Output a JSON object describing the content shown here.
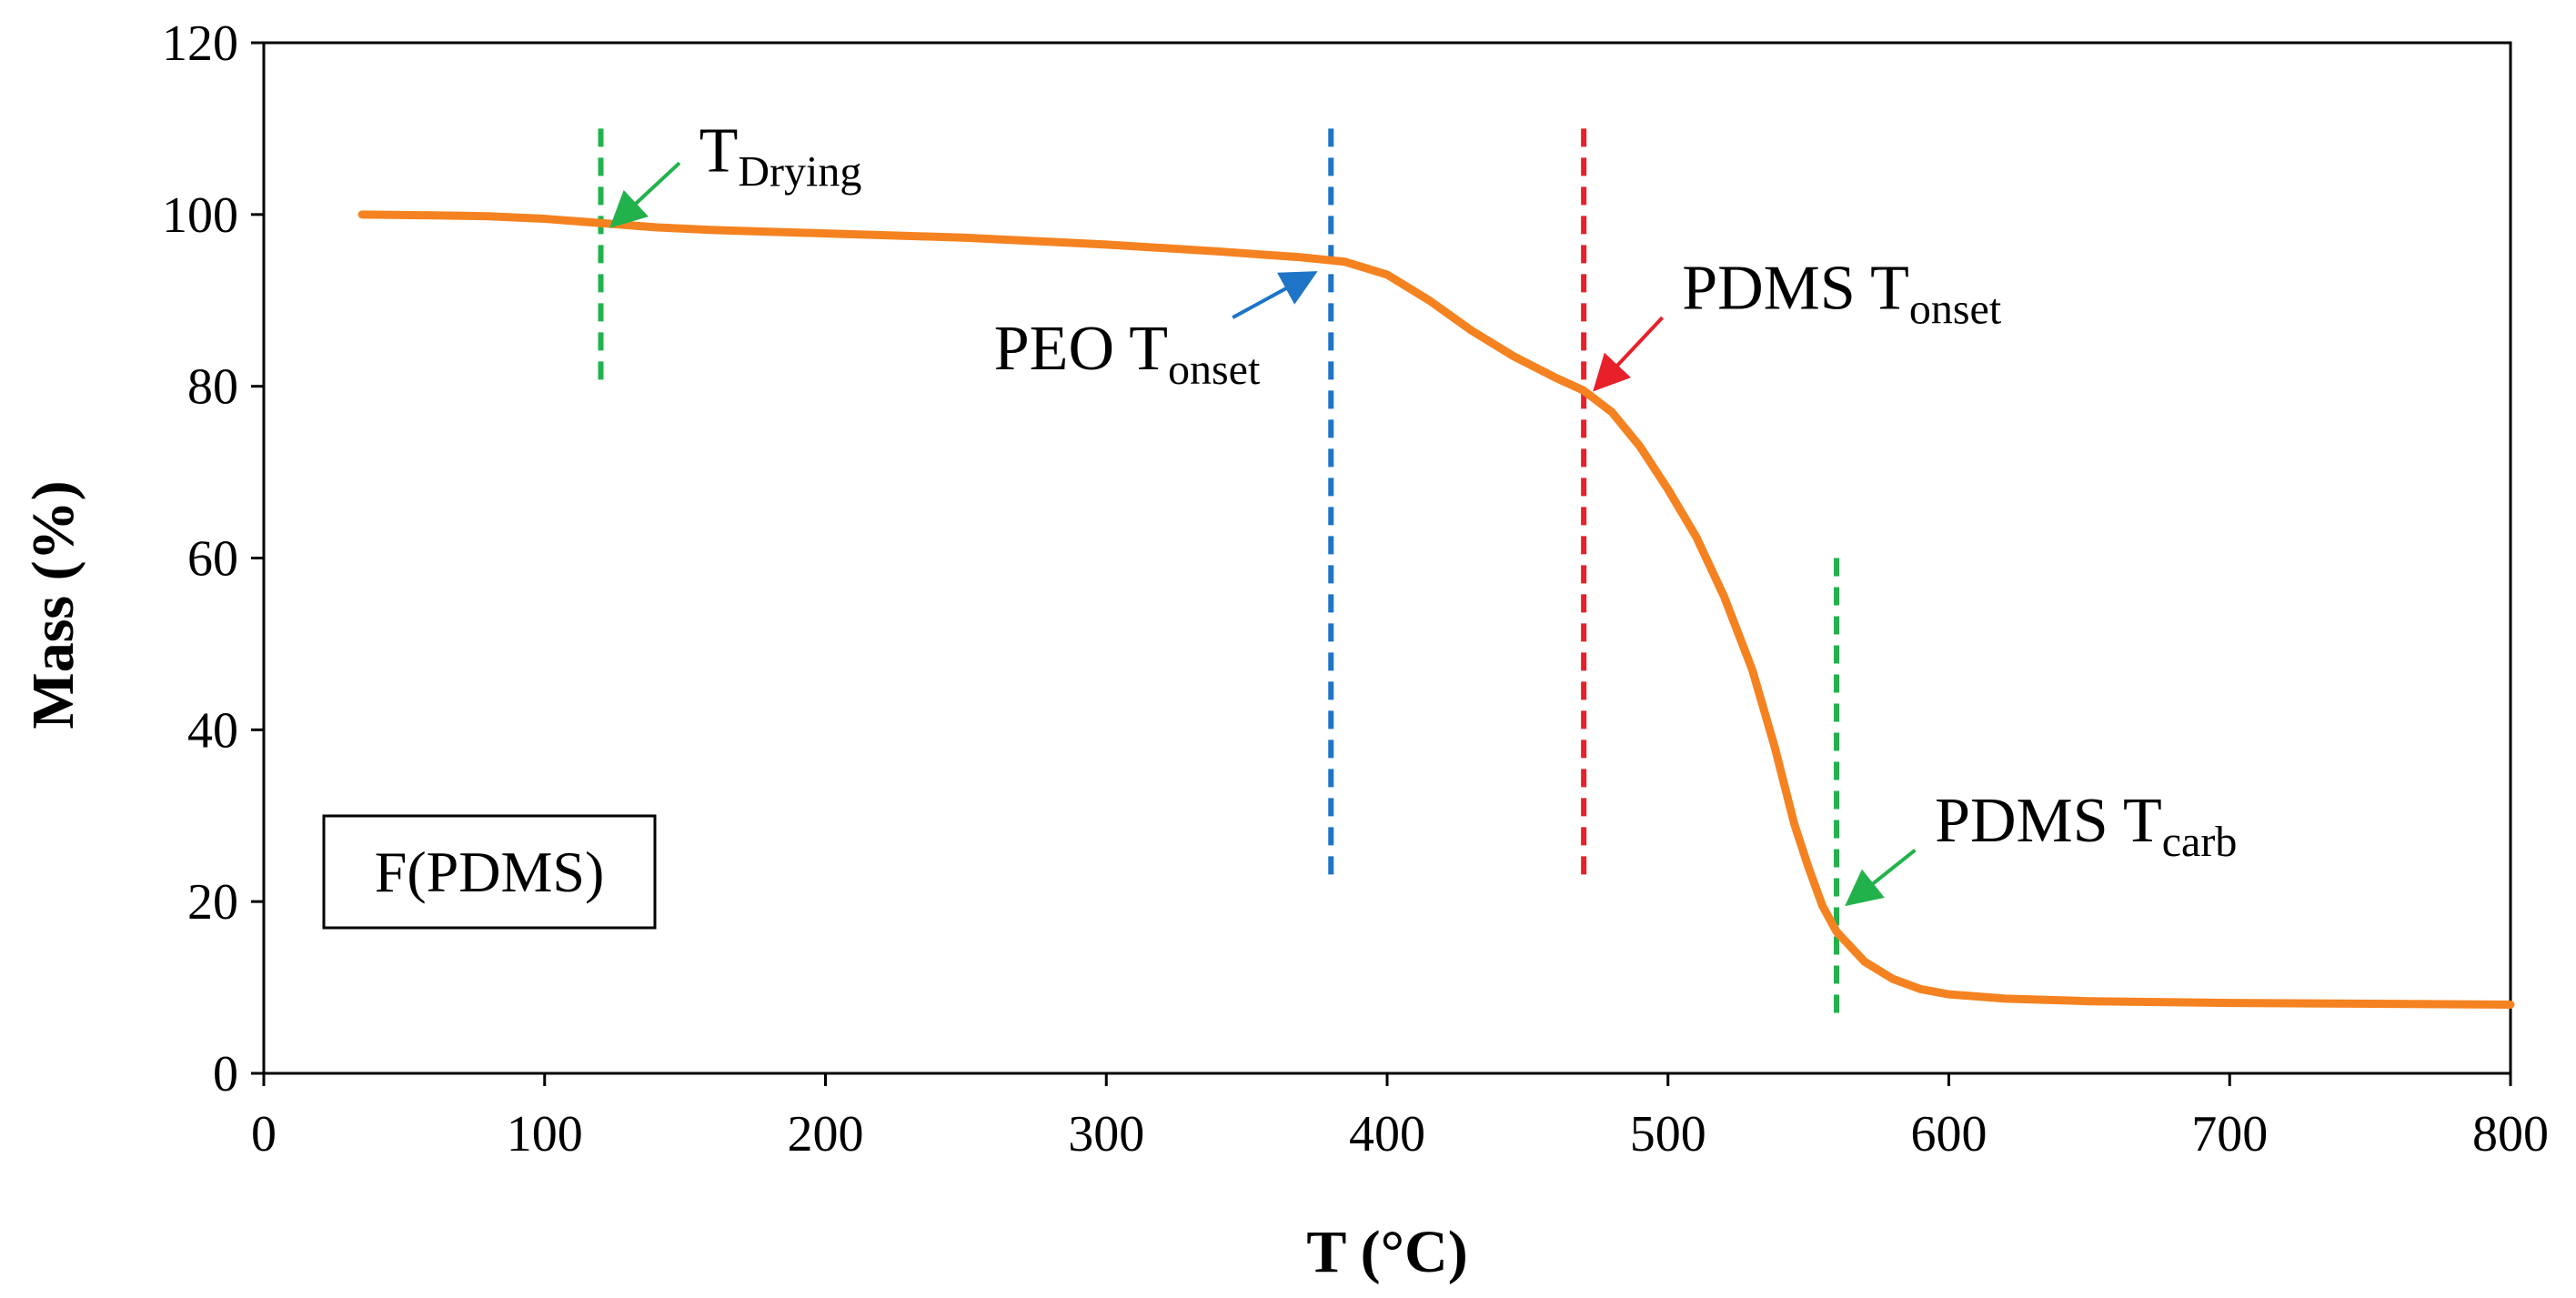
{
  "chart_data": {
    "type": "line",
    "title": "",
    "xlabel": "T (°C)",
    "ylabel": "Mass (%)",
    "xlim": [
      0,
      800
    ],
    "ylim": [
      0,
      120
    ],
    "xticks": [
      0,
      100,
      200,
      300,
      400,
      500,
      600,
      700,
      800
    ],
    "yticks": [
      0,
      20,
      40,
      60,
      80,
      100,
      120
    ],
    "grid": false,
    "legend": "none",
    "sample_label": "F(PDMS)",
    "series": [
      {
        "name": "F(PDMS)",
        "color": "#f58220",
        "x": [
          35,
          60,
          80,
          100,
          120,
          140,
          160,
          200,
          250,
          300,
          340,
          370,
          385,
          400,
          415,
          430,
          445,
          460,
          470,
          480,
          490,
          500,
          510,
          520,
          530,
          538,
          545,
          550,
          555,
          560,
          570,
          580,
          590,
          600,
          620,
          650,
          700,
          750,
          800
        ],
        "y": [
          100,
          99.9,
          99.8,
          99.5,
          99,
          98.5,
          98.2,
          97.8,
          97.3,
          96.5,
          95.7,
          95,
          94.5,
          93,
          90,
          86.5,
          83.5,
          81,
          79.5,
          77,
          73,
          68,
          62.5,
          55.5,
          47,
          38,
          29,
          24,
          19.5,
          16.5,
          13,
          11,
          9.8,
          9.2,
          8.7,
          8.4,
          8.2,
          8.1,
          8
        ]
      }
    ],
    "markers": [
      {
        "name": "T_Drying",
        "x": 120,
        "y_from": 80,
        "y_to": 110,
        "color": "#22b24c"
      },
      {
        "name": "PEO T_onset",
        "x": 380,
        "y_from": 22,
        "y_to": 110,
        "color": "#1e74c6"
      },
      {
        "name": "PDMS T_onset",
        "x": 470,
        "y_from": 22,
        "y_to": 110,
        "color": "#e8202a"
      },
      {
        "name": "PDMS T_carb",
        "x": 560,
        "y_from": 6,
        "y_to": 60,
        "color": "#22b24c"
      }
    ],
    "annotations": [
      {
        "name": "t-drying",
        "text_main": "T",
        "text_sub": "Drying",
        "color": "#22b24c",
        "text_x": 155,
        "text_y": 105,
        "arrow_from": [
          148,
          106
        ],
        "arrow_to": [
          125,
          99
        ]
      },
      {
        "name": "peo-tonset",
        "text_main": "PEO T",
        "text_sub": "onset",
        "color": "#1e74c6",
        "text_x": 260,
        "text_y": 82,
        "arrow_from": [
          345,
          88
        ],
        "arrow_to": [
          373,
          93
        ]
      },
      {
        "name": "pdms-tonset",
        "text_main": "PDMS T",
        "text_sub": "onset",
        "color": "#e8202a",
        "text_x": 505,
        "text_y": 89,
        "arrow_from": [
          498,
          88
        ],
        "arrow_to": [
          475,
          80
        ]
      },
      {
        "name": "pdms-tcarb",
        "text_main": "PDMS T",
        "text_sub": "carb",
        "color": "#22b24c",
        "text_x": 595,
        "text_y": 27,
        "arrow_from": [
          588,
          26
        ],
        "arrow_to": [
          565,
          20
        ]
      }
    ]
  }
}
